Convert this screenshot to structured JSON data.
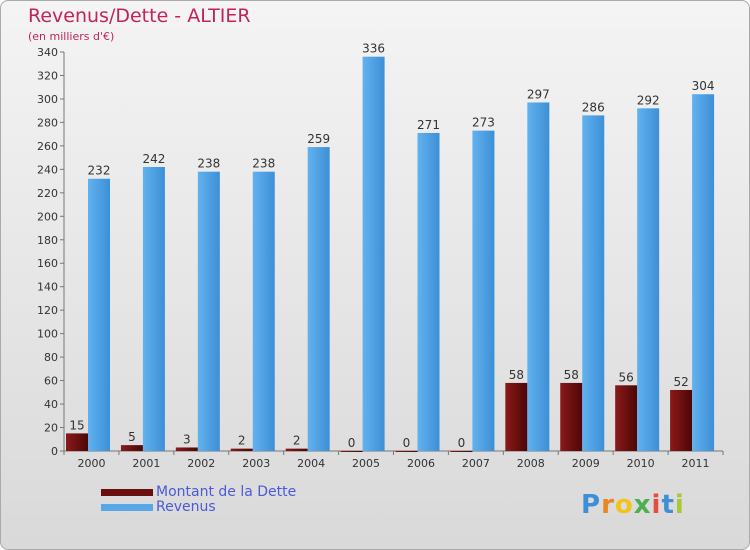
{
  "header": {
    "title": "Revenus/Dette - ALTIER",
    "subtitle": "(en milliers d'€)"
  },
  "legend": {
    "debt_label": "Montant de la Dette",
    "revenue_label": "Revenus"
  },
  "brand": {
    "logo_text": "Proxiti",
    "letter_colors": [
      "#3f8fd6",
      "#e8871e",
      "#f0c419",
      "#4caf50",
      "#e84c3d",
      "#3f8fd6",
      "#a6c93a"
    ]
  },
  "colors": {
    "debt": "#6b0e0e",
    "revenue": "#58a8e8",
    "title": "#c0245b",
    "legend_text": "#4a5ad8"
  },
  "chart_data": {
    "type": "bar",
    "title": "Revenus/Dette - ALTIER",
    "subtitle": "(en milliers d'€)",
    "xlabel": "",
    "ylabel": "",
    "ylim": [
      0,
      340
    ],
    "yticks": [
      0,
      20,
      40,
      60,
      80,
      100,
      120,
      140,
      160,
      180,
      200,
      220,
      240,
      260,
      280,
      300,
      320,
      340
    ],
    "grid": false,
    "legend_position": "bottom-left",
    "categories": [
      "2000",
      "2001",
      "2002",
      "2003",
      "2004",
      "2005",
      "2006",
      "2007",
      "2008",
      "2009",
      "2010",
      "2011"
    ],
    "series": [
      {
        "name": "Montant de la Dette",
        "values": [
          15,
          5,
          3,
          2,
          2,
          0,
          0,
          0,
          58,
          58,
          56,
          52
        ]
      },
      {
        "name": "Revenus",
        "values": [
          232,
          242,
          238,
          238,
          259,
          336,
          271,
          273,
          297,
          286,
          292,
          304
        ]
      }
    ]
  }
}
